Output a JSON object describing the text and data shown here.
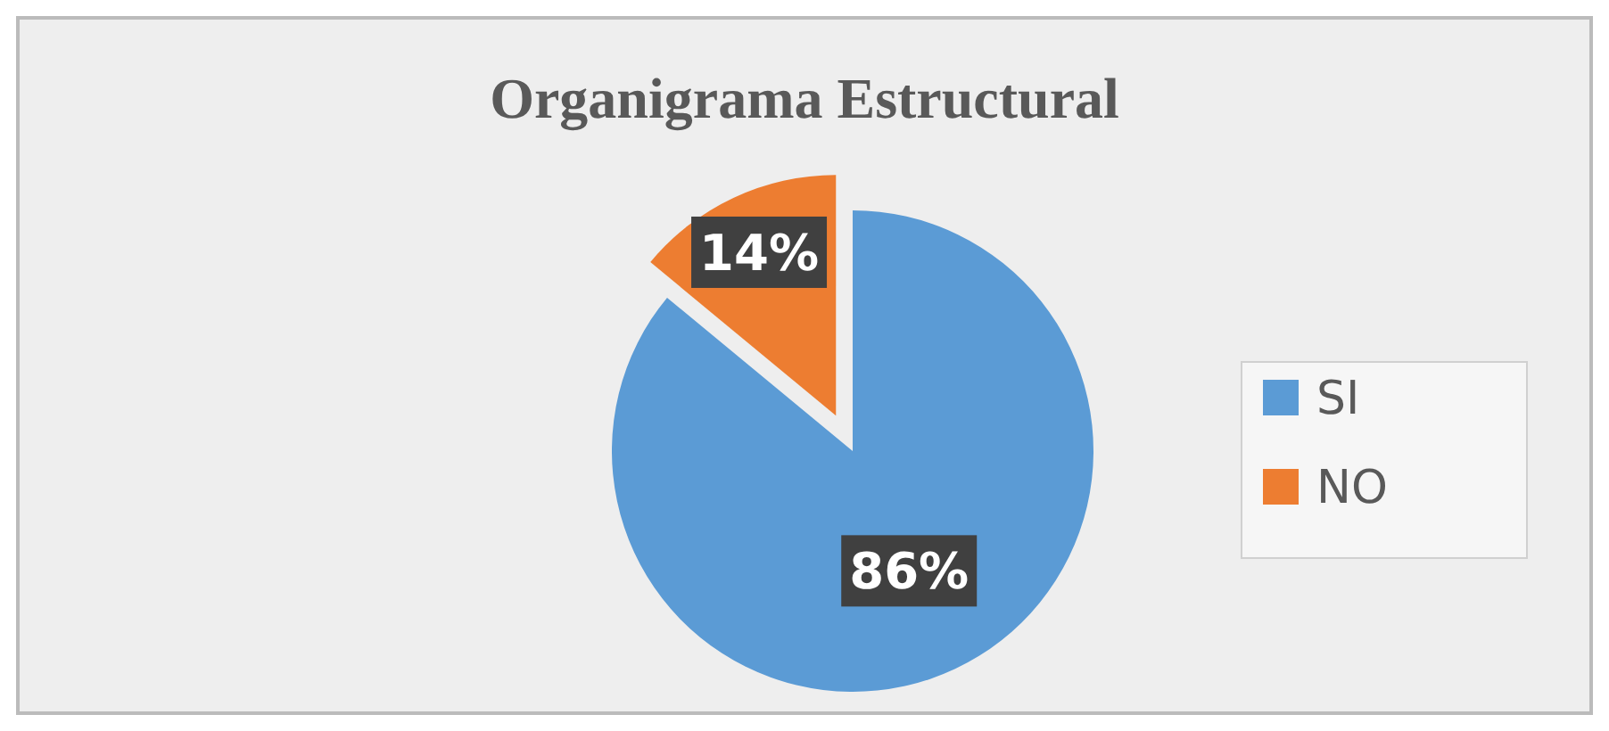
{
  "chart_data": {
    "type": "pie",
    "title": "Organigrama  Estructural",
    "categories": [
      "SI",
      "NO"
    ],
    "values": [
      86,
      14
    ],
    "colors": [
      "#5b9bd5",
      "#ed7d31"
    ],
    "value_labels": [
      "86%",
      "14%"
    ],
    "legend": "right"
  }
}
